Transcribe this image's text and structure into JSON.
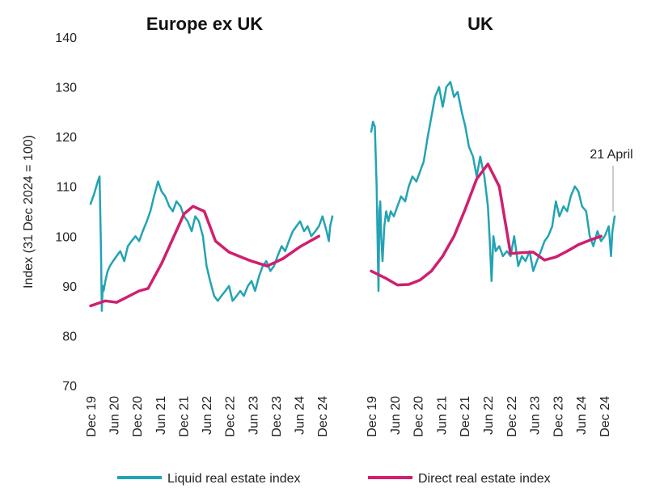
{
  "colors": {
    "liquid": "#22a3b3",
    "direct": "#d01f6e",
    "annotation_line": "#bbbbbb"
  },
  "chart_data": {
    "type": "line",
    "ylabel": "Index (31 Dec 2024 = 100)",
    "ylim": [
      70,
      140
    ],
    "y_ticks": [
      "70",
      "80",
      "90",
      "100",
      "110",
      "120",
      "130",
      "140"
    ],
    "x_ticks": [
      "Dec 19",
      "Jun 20",
      "Dec 20",
      "Jun 21",
      "Dec 21",
      "Jun 22",
      "Dec 22",
      "Jun 23",
      "Dec 23",
      "Jun 24",
      "Dec 24"
    ],
    "xlim": [
      2019.92,
      2025.3
    ],
    "grid": false,
    "legend_position": "bottom",
    "legend": [
      {
        "name": "Liquid real estate index",
        "color_key": "liquid"
      },
      {
        "name": "Direct real estate index",
        "color_key": "direct"
      }
    ],
    "panels": [
      {
        "title": "Europe ex UK",
        "series": [
          {
            "name": "Liquid real estate index",
            "x": [
              2019.92,
              2020.0,
              2020.08,
              2020.12,
              2020.15,
              2020.17,
              2020.19,
              2020.21,
              2020.25,
              2020.3,
              2020.35,
              2020.42,
              2020.5,
              2020.58,
              2020.67,
              2020.75,
              2020.83,
              2020.92,
              2021.0,
              2021.08,
              2021.17,
              2021.25,
              2021.33,
              2021.42,
              2021.5,
              2021.58,
              2021.67,
              2021.75,
              2021.83,
              2021.92,
              2022.0,
              2022.08,
              2022.17,
              2022.25,
              2022.33,
              2022.42,
              2022.5,
              2022.58,
              2022.67,
              2022.75,
              2022.83,
              2022.92,
              2023.0,
              2023.08,
              2023.17,
              2023.25,
              2023.33,
              2023.42,
              2023.5,
              2023.58,
              2023.67,
              2023.75,
              2023.83,
              2023.92,
              2024.0,
              2024.08,
              2024.17,
              2024.25,
              2024.33,
              2024.42,
              2024.5,
              2024.58,
              2024.67,
              2024.75,
              2024.83,
              2024.92,
              2025.0,
              2025.08,
              2025.17,
              2025.22,
              2025.25,
              2025.3
            ],
            "y": [
              106.5,
              108.5,
              111,
              112,
              98,
              85,
              90,
              89,
              91,
              93,
              94,
              95,
              96,
              97,
              95,
              98,
              99,
              100,
              99,
              101,
              103,
              105,
              108,
              111,
              109,
              108,
              106,
              105,
              107,
              106,
              104,
              103,
              101,
              104,
              103,
              100,
              94,
              91,
              88,
              87,
              88,
              89,
              90,
              87,
              88,
              89,
              88,
              90,
              91,
              89,
              92,
              94,
              95,
              93,
              94,
              96,
              98,
              97,
              99,
              101,
              102,
              103,
              101,
              102,
              100,
              101,
              102,
              104,
              101,
              99,
              102,
              104
            ]
          },
          {
            "name": "Direct real estate index",
            "x": [
              2019.92,
              2020.25,
              2020.5,
              2021.0,
              2021.2,
              2021.5,
              2021.75,
              2022.0,
              2022.2,
              2022.45,
              2022.7,
              2023.0,
              2023.3,
              2023.5,
              2023.85,
              2024.2,
              2024.6,
              2025.0
            ],
            "y": [
              86,
              87,
              86.7,
              89,
              89.5,
              94.5,
              99.5,
              104.5,
              106,
              105,
              99,
              96.8,
              95.7,
              95,
              94,
              95.5,
              98,
              100
            ]
          }
        ]
      },
      {
        "title": "UK",
        "annotation": "21 April",
        "annotation_x": 2025.3,
        "series": [
          {
            "name": "Liquid real estate index",
            "x": [
              2019.92,
              2019.96,
              2020.0,
              2020.04,
              2020.08,
              2020.1,
              2020.12,
              2020.14,
              2020.17,
              2020.21,
              2020.25,
              2020.3,
              2020.35,
              2020.42,
              2020.5,
              2020.58,
              2020.67,
              2020.75,
              2020.83,
              2020.92,
              2021.0,
              2021.08,
              2021.17,
              2021.25,
              2021.33,
              2021.42,
              2021.5,
              2021.58,
              2021.67,
              2021.75,
              2021.83,
              2021.92,
              2022.0,
              2022.08,
              2022.17,
              2022.25,
              2022.33,
              2022.42,
              2022.5,
              2022.54,
              2022.58,
              2022.62,
              2022.67,
              2022.75,
              2022.83,
              2022.92,
              2023.0,
              2023.08,
              2023.17,
              2023.25,
              2023.33,
              2023.42,
              2023.5,
              2023.58,
              2023.67,
              2023.75,
              2023.83,
              2023.92,
              2024.0,
              2024.08,
              2024.17,
              2024.25,
              2024.33,
              2024.42,
              2024.5,
              2024.58,
              2024.67,
              2024.75,
              2024.83,
              2024.92,
              2025.0,
              2025.08,
              2025.17,
              2025.22,
              2025.25,
              2025.3
            ],
            "y": [
              121,
              123,
              122,
              110,
              89,
              105,
              107,
              100,
              95,
              102,
              105,
              103,
              105,
              104,
              106,
              108,
              107,
              110,
              112,
              111,
              113,
              115,
              120,
              124,
              128,
              130,
              126,
              130,
              131,
              128,
              129,
              125,
              122,
              118,
              116,
              112,
              116,
              112,
              106,
              99,
              91,
              100,
              97,
              98,
              96,
              97,
              96,
              100,
              94,
              96,
              95,
              97,
              93,
              95,
              97,
              99,
              100,
              102,
              107,
              104,
              106,
              105,
              108,
              110,
              109,
              106,
              105,
              100,
              98,
              101,
              99,
              100,
              102,
              96,
              101,
              104
            ]
          },
          {
            "name": "Direct real estate index",
            "x": [
              2019.92,
              2020.25,
              2020.5,
              2020.75,
              2021.0,
              2021.25,
              2021.5,
              2021.75,
              2022.0,
              2022.25,
              2022.5,
              2022.75,
              2023.0,
              2023.25,
              2023.5,
              2023.75,
              2024.0,
              2024.25,
              2024.5,
              2024.75,
              2025.0
            ],
            "y": [
              93,
              91.5,
              90.2,
              90.3,
              91.2,
              93,
              96,
              100,
              105.5,
              111.5,
              114.5,
              110,
              96.5,
              96.7,
              96.8,
              95.2,
              95.8,
              97,
              98.3,
              99.2,
              100
            ]
          }
        ]
      }
    ]
  }
}
